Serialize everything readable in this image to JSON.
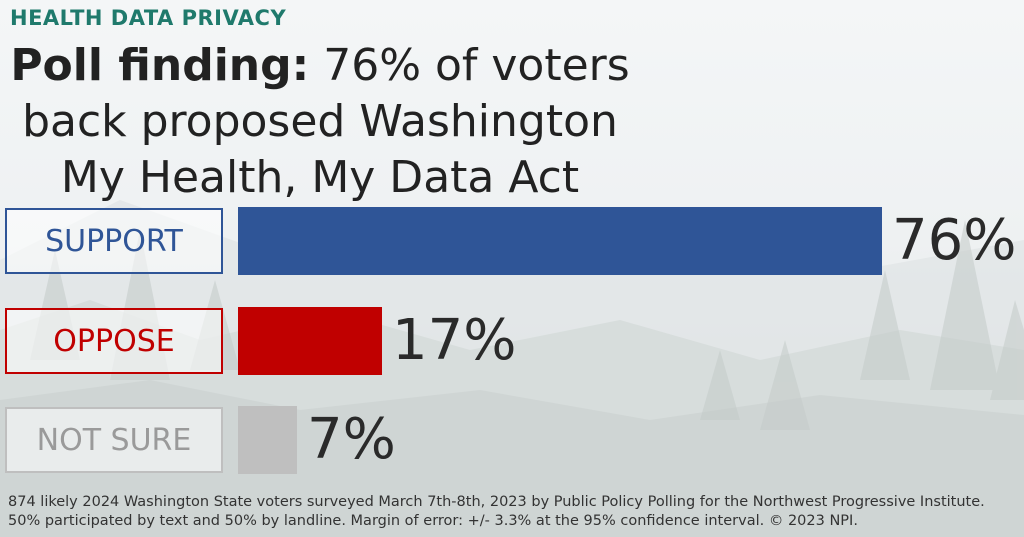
{
  "kicker": "HEALTH DATA PRIVACY",
  "headline": {
    "lead": "Poll finding:",
    "rest_line1": "76% of voters",
    "line2": "back proposed Washington",
    "line3": "My Health, My Data Act"
  },
  "chart_data": {
    "type": "bar",
    "orientation": "horizontal",
    "categories": [
      "SUPPORT",
      "OPPOSE",
      "NOT SURE"
    ],
    "values": [
      76,
      17,
      7
    ],
    "value_labels": [
      "76%",
      "17%",
      "7%"
    ],
    "colors": [
      "#2f5597",
      "#c00000",
      "#bfbfbf"
    ],
    "xlim": [
      0,
      76
    ],
    "grid": false
  },
  "footnote": "874 likely 2024 Washington State voters surveyed March 7th-8th, 2023 by Public Policy Polling for the Northwest Progressive Institute. 50% participated by text and 50% by landline. Margin of error: +/- 3.3% at the 95% confidence interval. © 2023 NPI."
}
